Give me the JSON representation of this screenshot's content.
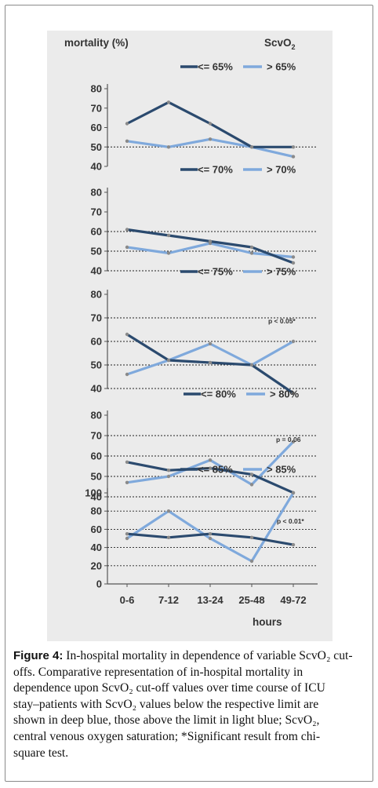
{
  "chart_data": {
    "type": "line",
    "y_label": "mortality (%)",
    "header_right": "ScvO",
    "header_right_sub": "2",
    "x_label": "hours",
    "categories": [
      "0-6",
      "7-12",
      "13-24",
      "25-48",
      "49-72"
    ],
    "colors": {
      "below": "#2b4a6e",
      "above": "#7fa9dc",
      "marker": "#8a8a8a"
    },
    "panels": [
      {
        "ylim": [
          40,
          80
        ],
        "yticks": [
          40,
          50,
          60,
          70,
          80
        ],
        "grid_dashed": [
          50
        ],
        "series": [
          {
            "name": "<= 65%",
            "values": [
              62,
              73,
              62,
              50,
              50
            ]
          },
          {
            "name": "> 65%",
            "values": [
              53,
              50,
              54,
              50,
              45
            ]
          }
        ],
        "annotation": ""
      },
      {
        "ylim": [
          40,
          80
        ],
        "yticks": [
          40,
          50,
          60,
          70,
          80
        ],
        "grid_dashed": [
          40,
          50,
          60
        ],
        "series": [
          {
            "name": "<= 70%",
            "values": [
              61,
              58,
              55,
              52,
              44
            ]
          },
          {
            "name": "> 70%",
            "values": [
              52,
              49,
              54,
              49,
              47
            ]
          }
        ],
        "annotation": ""
      },
      {
        "ylim": [
          40,
          80
        ],
        "yticks": [
          40,
          50,
          60,
          70,
          80
        ],
        "grid_dashed": [
          40,
          50,
          60,
          70
        ],
        "series": [
          {
            "name": "<= 75%",
            "values": [
              63,
              52,
              51,
              50,
              38
            ]
          },
          {
            "name": "> 75%",
            "values": [
              46,
              52,
              59,
              50,
              60
            ]
          }
        ],
        "annotation": "p < 0.05*"
      },
      {
        "ylim": [
          40,
          80
        ],
        "yticks": [
          40,
          50,
          60,
          70,
          80
        ],
        "grid_dashed": [
          40,
          50,
          60,
          70
        ],
        "series": [
          {
            "name": "<= 80%",
            "values": [
              57,
              53,
              54,
              51,
              42
            ]
          },
          {
            "name": "> 80%",
            "values": [
              47,
              50,
              58,
              46,
              67
            ]
          }
        ],
        "annotation": "p = 0.06"
      },
      {
        "ylim": [
          0,
          100
        ],
        "yticks": [
          0,
          20,
          40,
          60,
          80,
          100
        ],
        "grid_dashed": [
          20,
          40,
          60,
          80
        ],
        "series": [
          {
            "name": "<= 85%",
            "values": [
              55,
              51,
              55,
              51,
              43
            ]
          },
          {
            "name": "> 85%",
            "values": [
              50,
              80,
              50,
              25,
              100
            ]
          }
        ],
        "annotation": "p < 0.01*"
      }
    ]
  },
  "caption": {
    "figure_label": "Figure 4:",
    "lines": [
      "In-hospital mortality in dependence of variable ScvO₂ cut-",
      "offs. Comparative representation of in-hospital mortality in",
      "dependence upon ScvO₂ cut-off values over time course of ICU",
      "stay–patients with ScvO₂ values below the respective limit are",
      "shown in deep blue, those above the limit in light blue; ScvO₂,",
      "central venous oxygen saturation; *Significant result from chi-",
      "square test."
    ]
  }
}
